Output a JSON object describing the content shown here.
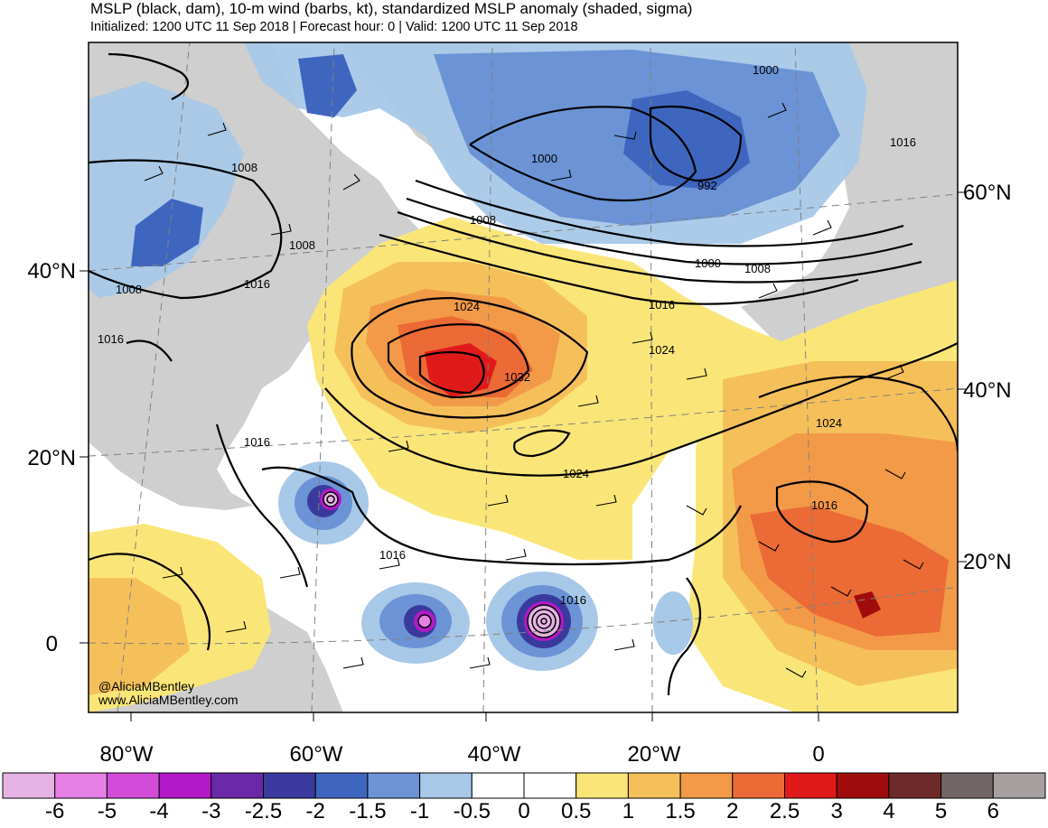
{
  "header": {
    "title": "MSLP (black, dam), 10-m wind (barbs, kt), standardized MSLP anomaly (shaded, sigma)",
    "subtitle": "Initialized: 1200 UTC 11 Sep 2018 | Forecast hour: 0 | Valid: 1200 UTC 11 Sep 2018"
  },
  "map": {
    "lat_labels_left": [
      "40°N",
      "20°N",
      "0"
    ],
    "lat_labels_right": [
      "60°N",
      "40°N",
      "20°N"
    ],
    "lon_labels": [
      "80°W",
      "60°W",
      "40°W",
      "20°W",
      "0"
    ],
    "contour_labels": [
      "1000",
      "1000",
      "992",
      "1016",
      "1008",
      "1008",
      "1008",
      "1008",
      "1000",
      "1008",
      "1016",
      "1016",
      "1024",
      "1016",
      "1024",
      "1032",
      "1024",
      "1024",
      "1016",
      "1016",
      "1016",
      "1016"
    ],
    "watermark": [
      "@AliciaMBentley",
      "www.AliciaMBentley.com"
    ],
    "colors": {
      "land_gray": "#cfcfcf",
      "ocean_white": "#ffffff"
    }
  },
  "colorbar": {
    "labels": [
      "-6",
      "-5",
      "-4",
      "-3",
      "-2.5",
      "-2",
      "-1.5",
      "-1",
      "-0.5",
      "0",
      "0.5",
      "1",
      "1.5",
      "2",
      "2.5",
      "3",
      "4",
      "5",
      "6"
    ],
    "colors": [
      "#e6b3e6",
      "#e680e6",
      "#d24cd9",
      "#b31ac7",
      "#6b28a8",
      "#3a3a9e",
      "#3f66bf",
      "#6b93d6",
      "#a8c8e8",
      "#ffffff",
      "#ffffff",
      "#fae678",
      "#f5c05a",
      "#f29a48",
      "#eb6a35",
      "#e01a1a",
      "#a00c0c",
      "#6e2a2a",
      "#736666",
      "#a8a0a0"
    ]
  }
}
